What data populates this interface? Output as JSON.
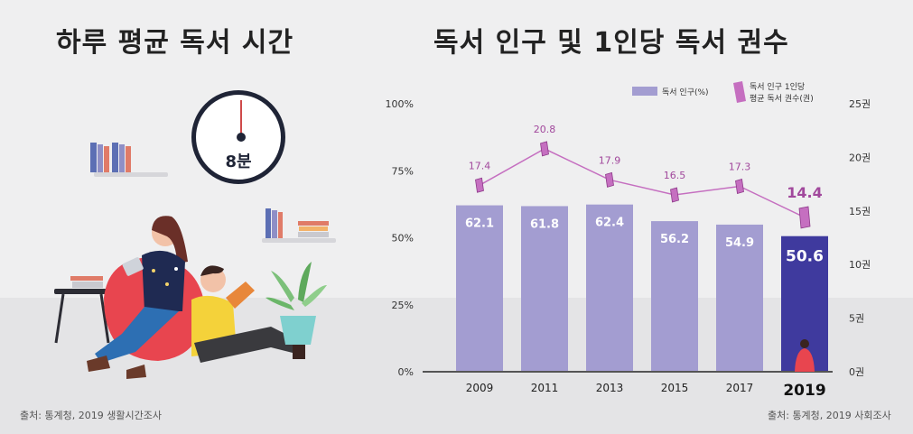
{
  "left_panel": {
    "title": "하루 평균 독서 시간",
    "clock_label": "8분",
    "source": "출처: 통계청, 2019 생활시간조사"
  },
  "right_panel": {
    "title": "독서 인구 및 1인당 독서 권수",
    "source": "출처: 통계청, 2019 사회조사"
  },
  "colors": {
    "bar": "#a39dd1",
    "bar_highlight": "#3f3a9e",
    "line": "#c56fc0",
    "line_label": "#a1489c",
    "background": "#efeff0"
  },
  "chart_data": {
    "type": "bar",
    "categories": [
      "2009",
      "2011",
      "2013",
      "2015",
      "2017",
      "2019"
    ],
    "highlight_category": "2019",
    "series": [
      {
        "name": "독서 인구(%)",
        "type": "bar",
        "axis": "left",
        "values": [
          62.1,
          61.8,
          62.4,
          56.2,
          54.9,
          50.6
        ]
      },
      {
        "name": "1인당 평균 독서 권수(권)",
        "type": "line",
        "axis": "right",
        "values": [
          17.4,
          20.8,
          17.9,
          16.5,
          17.3,
          14.4
        ]
      }
    ],
    "legend": {
      "bar_label": "독서 인구(%)",
      "line_label_1": "독서 인구 1인당",
      "line_label_2": "평균 독서 권수(권)",
      "placement": "top-right"
    },
    "y_left": {
      "ylim": [
        0,
        100
      ],
      "ticks": [
        "0%",
        "25%",
        "50%",
        "75%",
        "100%"
      ]
    },
    "y_right": {
      "ylim": [
        0,
        25
      ],
      "ticks": [
        "0권",
        "5권",
        "10권",
        "15권",
        "20권",
        "25권"
      ]
    },
    "grid": false
  }
}
